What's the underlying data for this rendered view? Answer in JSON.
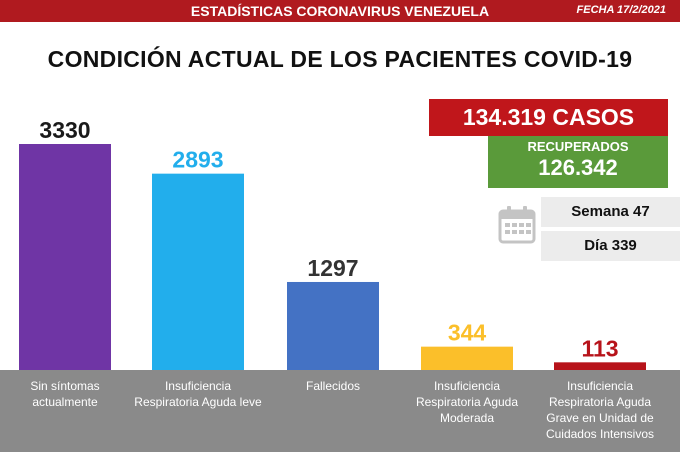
{
  "header": {
    "banner": "ESTADÍSTICAS CORONAVIRUS VENEZUELA",
    "date": "FECHA 17/2/2021"
  },
  "title": "CONDICIÓN ACTUAL DE LOS PACIENTES COVID-19",
  "stats": {
    "cases": "134.319 CASOS",
    "recovered_label": "RECUPERADOS",
    "recovered_value": "126.342",
    "week": "Semana 47",
    "day": "Día 339"
  },
  "icons": {
    "calendar": "calendar-icon"
  },
  "colors": {
    "banner": "#b01a1f",
    "cases_box": "#c0161b",
    "recovered_box": "#5a9a3a",
    "label_strip": "#8a8a8a"
  },
  "chart_data": {
    "type": "bar",
    "categories": [
      [
        "Sin síntomas",
        "actualmente"
      ],
      [
        "Insuficiencia",
        "Respiratoria Aguda leve"
      ],
      [
        "Fallecidos"
      ],
      [
        "Insuficiencia",
        "Respiratoria Aguda",
        "Moderada"
      ],
      [
        "Insuficiencia",
        "Respiratoria Aguda",
        "Grave en Unidad de",
        "Cuidados Intensivos"
      ]
    ],
    "values": [
      3330,
      2893,
      1297,
      344,
      113
    ],
    "value_labels": [
      "3330",
      "2893",
      "1297",
      "344",
      "113"
    ],
    "bar_colors": [
      "#6f35a5",
      "#22aeec",
      "#4472c4",
      "#fbbf2a",
      "#b7131a"
    ],
    "label_colors": [
      "#1a1a1a",
      "#22aeec",
      "#333333",
      "#fbbf2a",
      "#b7131a"
    ],
    "ylim": [
      0,
      3330
    ],
    "grid": false,
    "legend": "none"
  }
}
